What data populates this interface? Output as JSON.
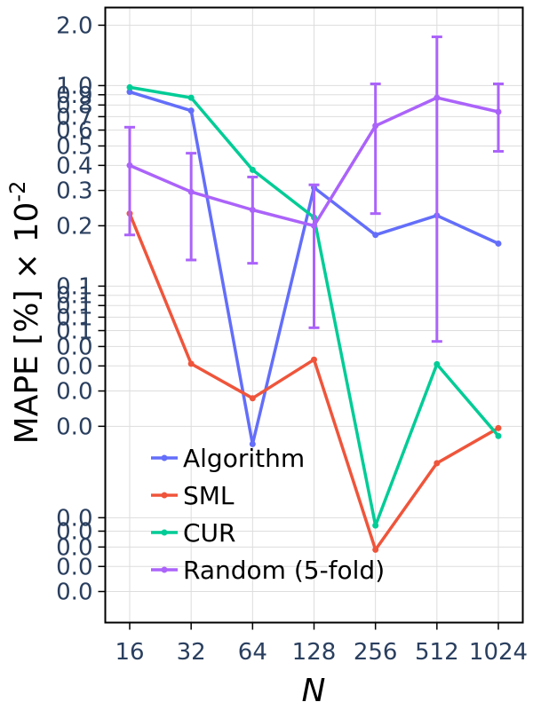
{
  "chart_data": {
    "type": "line",
    "title": "",
    "xlabel": "N",
    "ylabel": {
      "base": "MAPE [%] × 10",
      "sup": "-2"
    },
    "x_scale": "log2",
    "y_scale": "log",
    "categories": [
      "16",
      "32",
      "64",
      "128",
      "256",
      "512",
      "1024"
    ],
    "x": [
      16,
      32,
      64,
      128,
      256,
      512,
      1024
    ],
    "ylim": [
      0.0021,
      2.45
    ],
    "y_ticks": [
      {
        "value": 2.0,
        "label": "2.0"
      },
      {
        "value": 1.0,
        "label": "1.0"
      },
      {
        "value": 0.9,
        "label": "0.9"
      },
      {
        "value": 0.8,
        "label": "0.8"
      },
      {
        "value": 0.7,
        "label": "0.7"
      },
      {
        "value": 0.6,
        "label": "0.6"
      },
      {
        "value": 0.5,
        "label": "0.5"
      },
      {
        "value": 0.4,
        "label": "0.4"
      },
      {
        "value": 0.3,
        "label": "0.3"
      },
      {
        "value": 0.2,
        "label": "0.2"
      },
      {
        "value": 0.1,
        "label": "0.1"
      },
      {
        "value": 0.09,
        "label": "0.1"
      },
      {
        "value": 0.08,
        "label": "0.1"
      },
      {
        "value": 0.07,
        "label": "0.1"
      },
      {
        "value": 0.06,
        "label": "0.1"
      },
      {
        "value": 0.05,
        "label": "0.0"
      },
      {
        "value": 0.04,
        "label": "0.0"
      },
      {
        "value": 0.03,
        "label": "0.0"
      },
      {
        "value": 0.02,
        "label": "0.0"
      },
      {
        "value": 0.007,
        "label": "0.0"
      },
      {
        "value": 0.006,
        "label": "0.0"
      },
      {
        "value": 0.005,
        "label": "0.0"
      },
      {
        "value": 0.004,
        "label": "0.0"
      },
      {
        "value": 0.003,
        "label": "0.0"
      }
    ],
    "grid": true,
    "legend_position": "bottom-left",
    "series": [
      {
        "name": "Algorithm",
        "color": "#636efa",
        "values": [
          0.93,
          0.75,
          0.0163,
          0.31,
          0.18,
          0.225,
          0.163
        ]
      },
      {
        "name": "SML",
        "color": "#ef553b",
        "values": [
          0.23,
          0.041,
          0.0276,
          0.043,
          0.00485,
          0.0131,
          0.0196
        ]
      },
      {
        "name": "CUR",
        "color": "#00cc96",
        "values": [
          0.98,
          0.87,
          0.38,
          0.22,
          0.0064,
          0.0408,
          0.0179
        ]
      },
      {
        "name": "Random (5-fold)",
        "color": "#ab63fa",
        "values": [
          0.4,
          0.295,
          0.24,
          0.2,
          0.63,
          0.87,
          0.74
        ],
        "error_low": [
          0.18,
          0.135,
          0.13,
          0.062,
          0.23,
          0.053,
          0.47
        ],
        "error_high": [
          0.62,
          0.46,
          0.35,
          0.32,
          1.02,
          1.75,
          1.02
        ]
      }
    ]
  }
}
